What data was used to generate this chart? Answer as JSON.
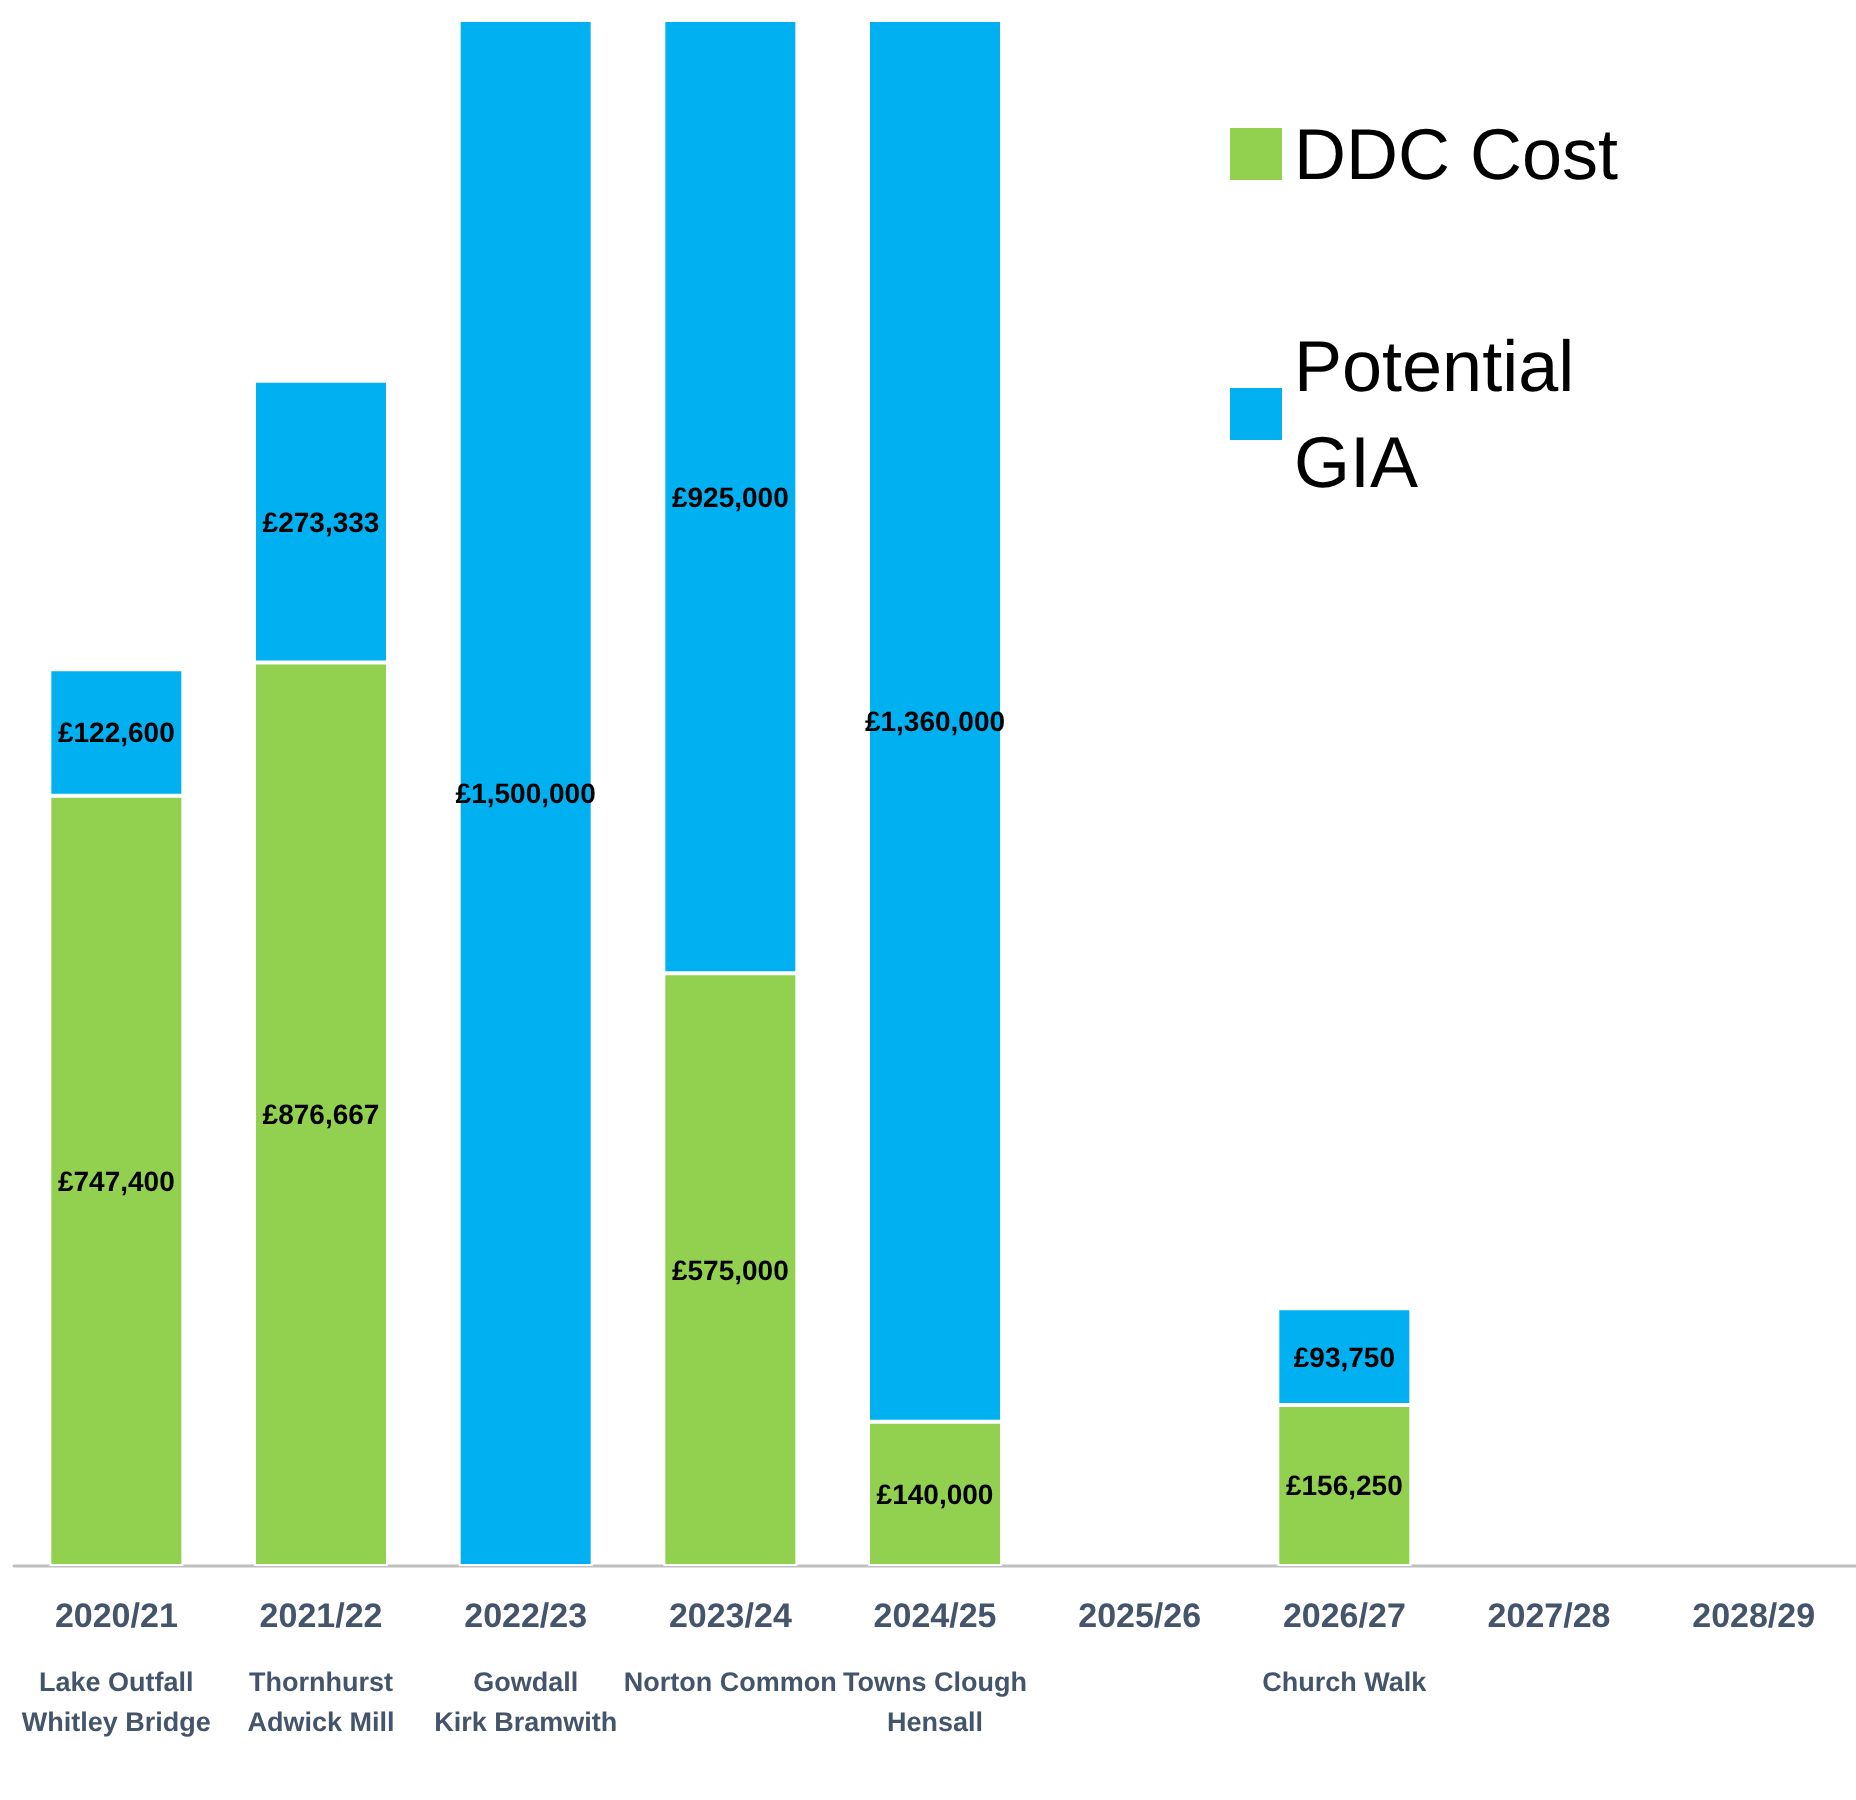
{
  "chart_data": {
    "type": "bar",
    "stacked": true,
    "categories": [
      "2020/21\nLake Outfall\nWhitley Bridge",
      "2021/22\nThornhurst\nAdwick Mill",
      "2022/23\nGowdall\nKirk Bramwith",
      "2023/24\nNorton Common",
      "2024/25\nTowns Clough\nHensall",
      "2025/26",
      "2026/27\nChurch Walk",
      "2027/28",
      "2028/29"
    ],
    "series": [
      {
        "name": "DDC Cost",
        "color": "#92d050",
        "values": [
          747400,
          876667,
          null,
          575000,
          140000,
          null,
          156250,
          null,
          null
        ],
        "value_labels": [
          "£747,400",
          "£876,667",
          null,
          "£575,000",
          "£140,000",
          null,
          "£156,250",
          null,
          null
        ]
      },
      {
        "name": "Potential GIA",
        "color": "#00b0f0",
        "values": [
          122600,
          273333,
          1500000,
          925000,
          1360000,
          null,
          93750,
          null,
          null
        ],
        "value_labels": [
          "£122,600",
          "£273,333",
          "£1,500,000",
          "£925,000",
          "£1,360,000",
          null,
          "£93,750",
          null,
          null
        ]
      }
    ],
    "tick_labels": "x",
    "legend": "top right"
  }
}
